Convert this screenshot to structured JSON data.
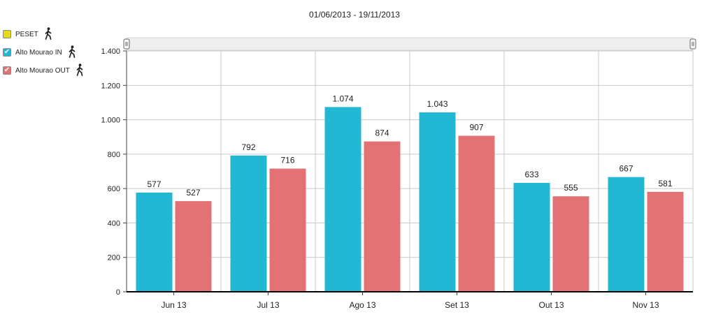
{
  "chart_title": "01/06/2013 - 19/11/2013",
  "colors": {
    "in": "#22b8d4",
    "out": "#e37275",
    "peset": "#e3dc14",
    "grid": "#c9c9c9",
    "axis": "#000000"
  },
  "legend": [
    {
      "label": "PESET",
      "checked": false,
      "color": "#e3dc14",
      "icon": "walking-person-icon"
    },
    {
      "label": "Alto Mourao IN",
      "checked": true,
      "color": "#22b8d4",
      "icon": "walking-person-icon"
    },
    {
      "label": "Alto Mourao OUT",
      "checked": true,
      "color": "#e37275",
      "icon": "walking-person-icon"
    }
  ],
  "chart_data": {
    "type": "bar",
    "title": "01/06/2013 - 19/11/2013",
    "categories": [
      "Jun 13",
      "Jul 13",
      "Ago 13",
      "Set 13",
      "Out 13",
      "Nov 13"
    ],
    "series": [
      {
        "name": "Alto Mourao IN",
        "values": [
          577,
          792,
          1074,
          1043,
          633,
          667
        ],
        "labels": [
          "577",
          "792",
          "1.074",
          "1.043",
          "633",
          "667"
        ]
      },
      {
        "name": "Alto Mourao OUT",
        "values": [
          527,
          716,
          874,
          907,
          555,
          581
        ],
        "labels": [
          "527",
          "716",
          "874",
          "907",
          "555",
          "581"
        ]
      }
    ],
    "ylim": [
      0,
      1400
    ],
    "yticks": [
      0,
      200,
      400,
      600,
      800,
      1000,
      1200,
      1400
    ],
    "ytick_labels": [
      "0",
      "200",
      "400",
      "600",
      "800",
      "1.000",
      "1.200",
      "1.400"
    ],
    "grid": true,
    "legend_position": "top-left"
  }
}
